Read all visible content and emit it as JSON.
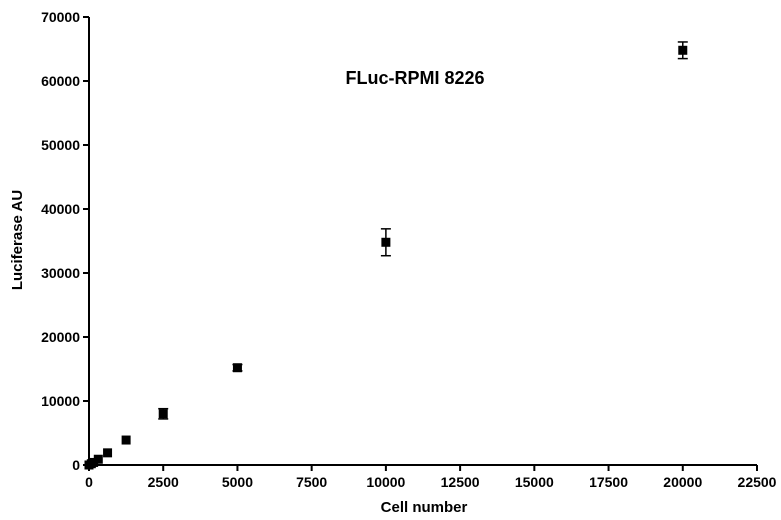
{
  "chart_data": {
    "type": "scatter",
    "title": "FLuc-RPMI 8226",
    "xlabel": "Cell number",
    "ylabel": "Luciferase AU",
    "xlim": [
      0,
      22500
    ],
    "ylim": [
      0,
      70000
    ],
    "x_ticks": [
      0,
      2500,
      5000,
      7500,
      10000,
      12500,
      15000,
      17500,
      20000,
      22500
    ],
    "y_ticks": [
      0,
      10000,
      20000,
      30000,
      40000,
      50000,
      60000,
      70000
    ],
    "grid": false,
    "marker": "square",
    "color": "#000000",
    "series": [
      {
        "points": [
          {
            "x": 0,
            "y": 0,
            "err": 0
          },
          {
            "x": 78,
            "y": 200,
            "err": 0
          },
          {
            "x": 156,
            "y": 400,
            "err": 0
          },
          {
            "x": 313,
            "y": 900,
            "err": 0
          },
          {
            "x": 625,
            "y": 1900,
            "err": 0
          },
          {
            "x": 1250,
            "y": 3900,
            "err": 0
          },
          {
            "x": 2500,
            "y": 8000,
            "err": 800
          },
          {
            "x": 5000,
            "y": 15200,
            "err": 500
          },
          {
            "x": 10000,
            "y": 34800,
            "err": 2100
          },
          {
            "x": 20000,
            "y": 64800,
            "err": 1300
          }
        ]
      }
    ]
  }
}
